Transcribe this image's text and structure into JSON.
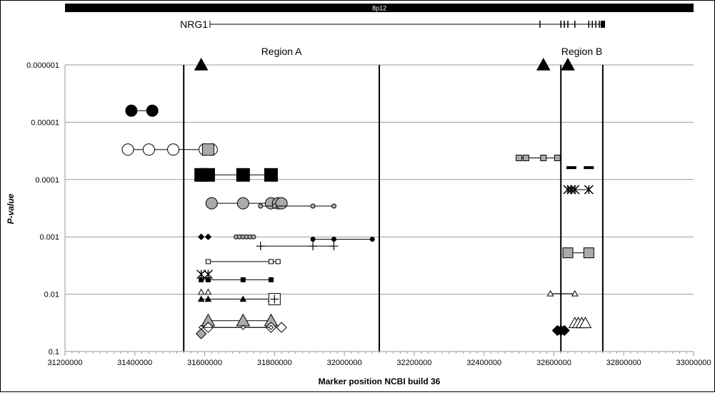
{
  "chart_data": {
    "type": "scatter",
    "chromosome_band": "8p12",
    "gene_label": "NRG1",
    "regions": [
      {
        "label": "Region A",
        "start": 31540000,
        "end": 32100000
      },
      {
        "label": "Region B",
        "start": 32620000,
        "end": 32740000
      }
    ],
    "xlabel": "Marker position NCBI build 36",
    "ylabel": "P-value",
    "y_scale": "log",
    "y_reversed": true,
    "xlim": [
      31200000,
      33000000
    ],
    "ylim": [
      0.1,
      1e-06
    ],
    "x_ticks": [
      "31200000",
      "31400000",
      "31600000",
      "31800000",
      "32000000",
      "32200000",
      "32400000",
      "32600000",
      "32800000",
      "33000000"
    ],
    "y_ticks": [
      {
        "value": 1e-06,
        "label": "0.000001"
      },
      {
        "value": 1e-05,
        "label": "0.00001"
      },
      {
        "value": 0.0001,
        "label": "0.0001"
      },
      {
        "value": 0.001,
        "label": "0.001"
      },
      {
        "value": 0.01,
        "label": "0.01"
      },
      {
        "value": 0.1,
        "label": "0.1"
      }
    ],
    "grid": true,
    "gene_exons": [
      32560000,
      32620000,
      32630000,
      32640000,
      32660000,
      32700000,
      32710000,
      32720000,
      32730000
    ],
    "series": [
      {
        "marker": "triangle",
        "fill": "#000000",
        "size": 9,
        "line": false,
        "points": [
          [
            31590000,
            1e-06
          ],
          [
            32570000,
            1e-06
          ],
          [
            32640000,
            1e-06
          ]
        ]
      },
      {
        "marker": "circle",
        "fill": "#000000",
        "size": 8,
        "line": true,
        "points": [
          [
            31390000,
            6.3e-06
          ],
          [
            31450000,
            6.3e-06
          ]
        ]
      },
      {
        "marker": "circle",
        "fill": "#ffffff",
        "size": 8,
        "line": true,
        "points": [
          [
            31380000,
            3e-05
          ],
          [
            31440000,
            3e-05
          ],
          [
            31510000,
            3e-05
          ],
          [
            31600000,
            3e-05
          ],
          [
            31620000,
            3e-05
          ]
        ]
      },
      {
        "marker": "square",
        "fill": "#aaaaaa",
        "size": 8,
        "line": false,
        "points": [
          [
            31610000,
            3e-05
          ]
        ]
      },
      {
        "marker": "square",
        "fill": "#000000",
        "size": 9,
        "line": true,
        "points": [
          [
            31590000,
            8.3e-05
          ],
          [
            31610000,
            8.3e-05
          ],
          [
            31710000,
            8.3e-05
          ],
          [
            31790000,
            8.3e-05
          ]
        ]
      },
      {
        "marker": "square",
        "fill": "#aaaaaa",
        "size": 4,
        "line": true,
        "points": [
          [
            32500000,
            4.2e-05
          ],
          [
            32520000,
            4.2e-05
          ],
          [
            32570000,
            4.2e-05
          ],
          [
            32610000,
            4.2e-05
          ]
        ]
      },
      {
        "marker": "dash",
        "fill": "#000000",
        "size": 7,
        "line": false,
        "points": [
          [
            32650000,
            6.2e-05
          ],
          [
            32700000,
            6.2e-05
          ]
        ]
      },
      {
        "marker": "circle",
        "fill": "#aaaaaa",
        "size": 8,
        "line": true,
        "points": [
          [
            31620000,
            0.00026
          ],
          [
            31710000,
            0.00026
          ],
          [
            31790000,
            0.00026
          ],
          [
            31810000,
            0.00026
          ],
          [
            31820000,
            0.00026
          ]
        ]
      },
      {
        "marker": "circle",
        "fill": "#aaaaaa",
        "size": 3,
        "line": true,
        "points": [
          [
            31760000,
            0.00029
          ],
          [
            31800000,
            0.00029
          ],
          [
            31910000,
            0.00029
          ],
          [
            31970000,
            0.00029
          ]
        ]
      },
      {
        "marker": "asterisk",
        "fill": "#000000",
        "size": 6,
        "line": true,
        "points": [
          [
            32640000,
            0.00015
          ],
          [
            32650000,
            0.00015
          ],
          [
            32660000,
            0.00015
          ],
          [
            32700000,
            0.00015
          ]
        ]
      },
      {
        "marker": "diamond",
        "fill": "#000000",
        "size": 4,
        "line": false,
        "points": [
          [
            31590000,
            0.001
          ],
          [
            31610000,
            0.001
          ]
        ]
      },
      {
        "marker": "circle",
        "fill": "#aaaaaa",
        "size": 3,
        "line": false,
        "points": [
          [
            31690000,
            0.001
          ],
          [
            31700000,
            0.001
          ],
          [
            31710000,
            0.001
          ],
          [
            31720000,
            0.001
          ],
          [
            31730000,
            0.001
          ],
          [
            31740000,
            0.001
          ]
        ]
      },
      {
        "marker": "circle",
        "fill": "#000000",
        "size": 3,
        "line": true,
        "points": [
          [
            31910000,
            0.0011
          ],
          [
            31970000,
            0.0011
          ],
          [
            32080000,
            0.0011
          ]
        ]
      },
      {
        "marker": "plus",
        "fill": "#000000",
        "size": 6,
        "line": true,
        "points": [
          [
            31760000,
            0.00145
          ],
          [
            31910000,
            0.00145
          ],
          [
            31970000,
            0.00145
          ]
        ]
      },
      {
        "marker": "square",
        "fill": "#aaaaaa",
        "size": 7,
        "line": true,
        "points": [
          [
            32640000,
            0.0019
          ],
          [
            32700000,
            0.0019
          ]
        ]
      },
      {
        "marker": "square",
        "fill": "#ffffff",
        "size": 3,
        "line": true,
        "points": [
          [
            31610000,
            0.0027
          ],
          [
            31790000,
            0.0027
          ],
          [
            31810000,
            0.0027
          ]
        ]
      },
      {
        "marker": "asterisk",
        "fill": "#000000",
        "size": 6,
        "line": false,
        "points": [
          [
            31590000,
            0.0045
          ],
          [
            31610000,
            0.0045
          ]
        ]
      },
      {
        "marker": "square",
        "fill": "#000000",
        "size": 3,
        "line": true,
        "points": [
          [
            31590000,
            0.0056
          ],
          [
            31610000,
            0.0056
          ],
          [
            31710000,
            0.0056
          ],
          [
            31790000,
            0.0056
          ]
        ]
      },
      {
        "marker": "triangle",
        "fill": "#ffffff",
        "size": 4,
        "line": false,
        "points": [
          [
            31590000,
            0.0092
          ],
          [
            31610000,
            0.0092
          ]
        ]
      },
      {
        "marker": "triangle",
        "fill": "#ffffff",
        "size": 4,
        "line": true,
        "points": [
          [
            32590000,
            0.0098
          ],
          [
            32660000,
            0.0098
          ]
        ]
      },
      {
        "marker": "triangle",
        "fill": "#000000",
        "size": 4,
        "line": true,
        "points": [
          [
            31590000,
            0.0122
          ],
          [
            31610000,
            0.0122
          ],
          [
            31710000,
            0.0122
          ],
          [
            31790000,
            0.0122
          ]
        ]
      },
      {
        "marker": "square",
        "fill": "#ffffff",
        "size": 8,
        "line": false,
        "points": [
          [
            31800000,
            0.0122
          ]
        ]
      },
      {
        "marker": "plus",
        "fill": "#000000",
        "size": 6,
        "line": false,
        "points": [
          [
            31800000,
            0.0122
          ]
        ]
      },
      {
        "marker": "triangle",
        "fill": "#aaaaaa",
        "size": 9,
        "line": true,
        "points": [
          [
            31610000,
            0.029
          ],
          [
            31710000,
            0.029
          ],
          [
            31790000,
            0.029
          ]
        ]
      },
      {
        "marker": "triangle",
        "fill": "#ffffff",
        "size": 8,
        "line": false,
        "points": [
          [
            32660000,
            0.032
          ],
          [
            32670000,
            0.032
          ],
          [
            32680000,
            0.032
          ],
          [
            32690000,
            0.032
          ]
        ]
      },
      {
        "marker": "diamond",
        "fill": "#ffffff",
        "size": 7,
        "line": true,
        "points": [
          [
            31610000,
            0.038
          ],
          [
            31790000,
            0.038
          ],
          [
            31820000,
            0.038
          ]
        ]
      },
      {
        "marker": "diamond",
        "fill": "#ffffff",
        "size": 3,
        "line": true,
        "points": [
          [
            31590000,
            0.038
          ],
          [
            31710000,
            0.038
          ],
          [
            31790000,
            0.038
          ]
        ]
      },
      {
        "marker": "diamond",
        "fill": "#aaaaaa",
        "size": 7,
        "line": false,
        "points": [
          [
            31590000,
            0.049
          ]
        ]
      },
      {
        "marker": "diamond",
        "fill": "#000000",
        "size": 7,
        "line": true,
        "points": [
          [
            32610000,
            0.043
          ],
          [
            32620000,
            0.043
          ],
          [
            32630000,
            0.043
          ]
        ]
      }
    ]
  }
}
